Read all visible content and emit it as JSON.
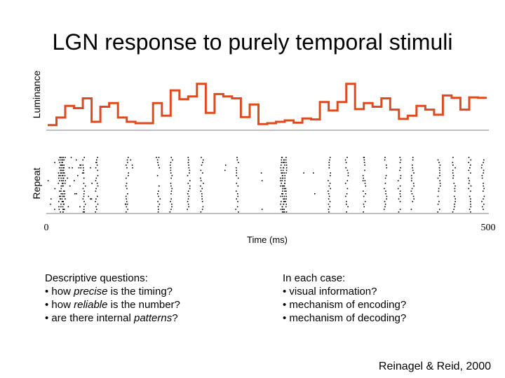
{
  "title": "LGN response to purely temporal stimuli",
  "citation": "Reinagel & Reid, 2000",
  "questions": {
    "heading": "Descriptive questions:",
    "items": [
      {
        "prefix": "• how ",
        "emph": "precise",
        "suffix": " is the timing?"
      },
      {
        "prefix": "• how ",
        "emph": "reliable",
        "suffix": " is the number?"
      },
      {
        "prefix": "• are there internal ",
        "emph": "patterns",
        "suffix": "?"
      }
    ]
  },
  "cases": {
    "heading": "In each case:",
    "items": [
      "• visual information?",
      "• mechanism of encoding?",
      "• mechanism of decoding?"
    ]
  },
  "chart_data": [
    {
      "type": "line",
      "ylabel": "Luminance",
      "xlim": [
        0,
        500
      ],
      "step": true,
      "color": "#e04a1f",
      "x": [
        0,
        10,
        20,
        30,
        40,
        50,
        60,
        70,
        80,
        90,
        100,
        110,
        120,
        130,
        140,
        150,
        160,
        170,
        180,
        190,
        200,
        210,
        220,
        230,
        240,
        250,
        260,
        270,
        280,
        290,
        300,
        310,
        320,
        330,
        340,
        350,
        360,
        370,
        380,
        390,
        400,
        410,
        420,
        430,
        440,
        450,
        460,
        470,
        480,
        490
      ],
      "y": [
        0.02,
        0.18,
        0.43,
        0.38,
        0.59,
        0.09,
        0.41,
        0.49,
        0.18,
        0.09,
        0.06,
        0.06,
        0.49,
        0.22,
        0.76,
        0.57,
        0.63,
        0.9,
        0.28,
        0.68,
        0.63,
        0.59,
        0.19,
        0.46,
        0.04,
        0.06,
        0.09,
        0.12,
        0.07,
        0.16,
        0.14,
        0.51,
        0.33,
        0.51,
        0.9,
        0.36,
        0.49,
        0.41,
        0.59,
        0.35,
        0.15,
        0.22,
        0.43,
        0.35,
        0.24,
        0.65,
        0.6,
        0.35,
        0.61,
        0.6
      ]
    },
    {
      "type": "scatter",
      "ylabel": "Repeat",
      "xlabel": "Time (ms)",
      "xlim": [
        0,
        500
      ],
      "xticks": [
        "0",
        "500"
      ],
      "burst_times": [
        13,
        15,
        16,
        17,
        18,
        41,
        55,
        90,
        126,
        140,
        160,
        175,
        215,
        266,
        268,
        268,
        270,
        320,
        340,
        360,
        384,
        400,
        415,
        445,
        462,
        480,
        495
      ],
      "sparse_times": [
        1,
        3,
        8,
        19,
        23,
        25,
        28,
        30,
        33,
        35,
        36,
        38,
        40,
        47,
        49,
        54,
        89,
        95,
        123,
        202,
        243,
        291,
        303,
        359
      ],
      "repeats": 22
    }
  ]
}
